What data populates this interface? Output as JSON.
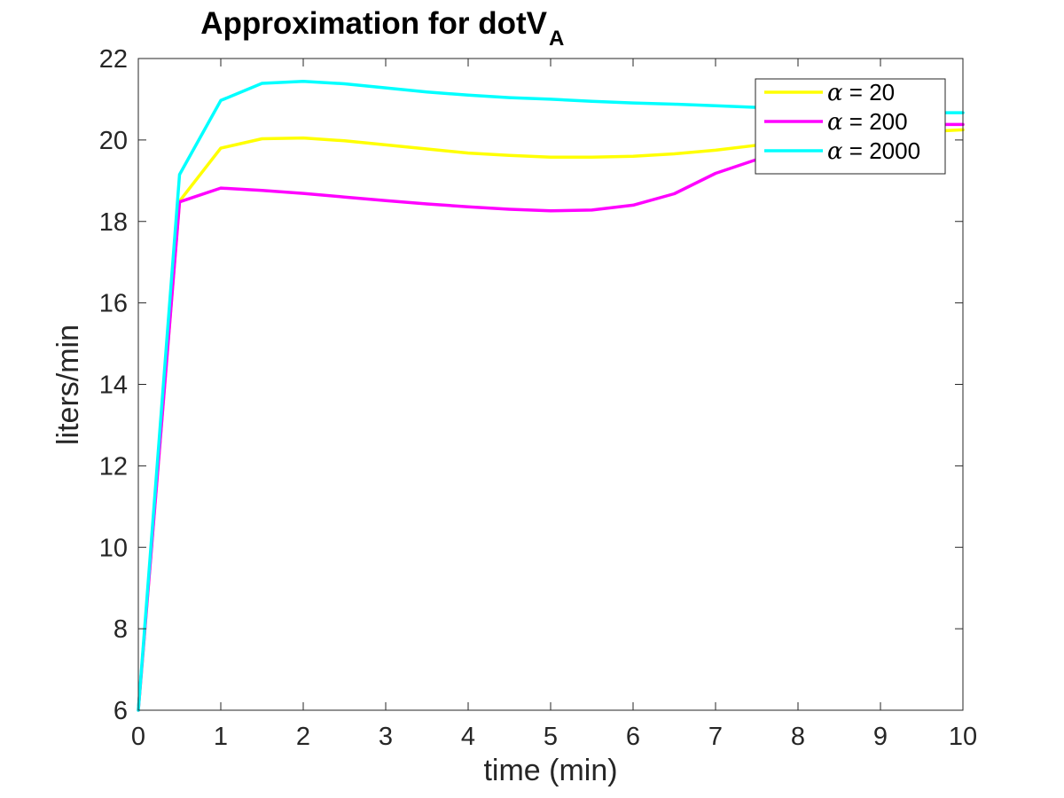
{
  "chart_data": {
    "type": "line",
    "title": "Approximation for dotV",
    "title_subscript": "A",
    "xlabel": "time (min)",
    "ylabel": "liters/min",
    "xlim": [
      0,
      10
    ],
    "ylim": [
      6,
      22
    ],
    "xticks": [
      "0",
      "1",
      "2",
      "3",
      "4",
      "5",
      "6",
      "7",
      "8",
      "9",
      "10"
    ],
    "yticks": [
      "6",
      "8",
      "10",
      "12",
      "14",
      "16",
      "18",
      "20",
      "22"
    ],
    "grid": false,
    "legend_position": "top-right",
    "x": [
      0,
      0.5,
      1,
      1.5,
      2,
      2.5,
      3,
      3.5,
      4,
      4.5,
      5,
      5.5,
      6,
      6.5,
      7,
      7.5,
      8,
      8.5,
      9,
      9.5,
      10
    ],
    "series": [
      {
        "name": "α = 20",
        "label_symbol": "α",
        "label_rest": " = 20",
        "color": "#ffff00",
        "values": [
          6,
          18.5,
          19.8,
          20.03,
          20.05,
          19.98,
          19.88,
          19.78,
          19.68,
          19.62,
          19.58,
          19.58,
          19.6,
          19.66,
          19.75,
          19.87,
          19.98,
          20.05,
          20.15,
          20.2,
          20.25
        ]
      },
      {
        "name": "α = 200",
        "label_symbol": "α",
        "label_rest": " = 200",
        "color": "#ff00ff",
        "values": [
          6,
          18.48,
          18.82,
          18.76,
          18.69,
          18.6,
          18.51,
          18.43,
          18.36,
          18.3,
          18.26,
          18.28,
          18.4,
          18.68,
          19.18,
          19.52,
          19.7,
          19.55,
          19.2,
          20.38,
          20.38
        ]
      },
      {
        "name": "α = 2000",
        "label_symbol": "α",
        "label_rest": " = 2000",
        "color": "#00ffff",
        "values": [
          6,
          19.15,
          20.97,
          21.39,
          21.44,
          21.38,
          21.28,
          21.18,
          21.1,
          21.04,
          21.0,
          20.95,
          20.91,
          20.88,
          20.84,
          20.8,
          20.77,
          20.74,
          20.71,
          20.67,
          20.67
        ]
      }
    ]
  }
}
